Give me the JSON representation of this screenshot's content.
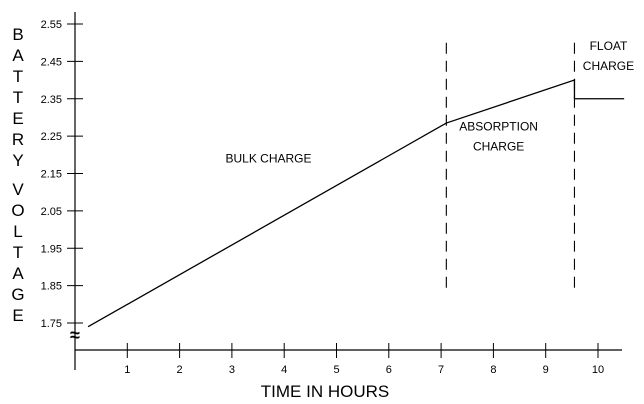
{
  "chart_data": {
    "type": "line",
    "xlabel": "TIME IN HOURS",
    "ylabel": "BATTERY VOLTAGE",
    "xlim": [
      0,
      10.5
    ],
    "ylim": [
      1.73,
      2.6
    ],
    "x_ticks": [
      "1",
      "2",
      "3",
      "4",
      "5",
      "6",
      "7",
      "8",
      "9",
      "10"
    ],
    "y_ticks": [
      "2.55",
      "2.45",
      "2.35",
      "2.25",
      "2.15",
      "2.05",
      "1.95",
      "1.85",
      "1.75"
    ],
    "series": [
      {
        "x": [
          0.25,
          7.1,
          9.55,
          9.55,
          10.5
        ],
        "y": [
          1.74,
          2.285,
          2.4,
          2.35,
          2.35
        ]
      }
    ],
    "phase_boundaries": [
      {
        "x": 7.1,
        "y_from": 1.84,
        "y_to": 2.5
      },
      {
        "x": 9.55,
        "y_from": 1.84,
        "y_to": 2.5
      }
    ],
    "annotations": [
      {
        "lines": [
          "BULK CHARGE"
        ],
        "x": 3.7,
        "y": 2.18
      },
      {
        "lines": [
          "ABSORPTION",
          "CHARGE"
        ],
        "x": 8.1,
        "y": 2.265
      },
      {
        "lines": [
          "FLOAT",
          "CHARGE"
        ],
        "x": 10.2,
        "y": 2.48
      }
    ],
    "axis_break_symbol": "≈",
    "grid": false
  }
}
